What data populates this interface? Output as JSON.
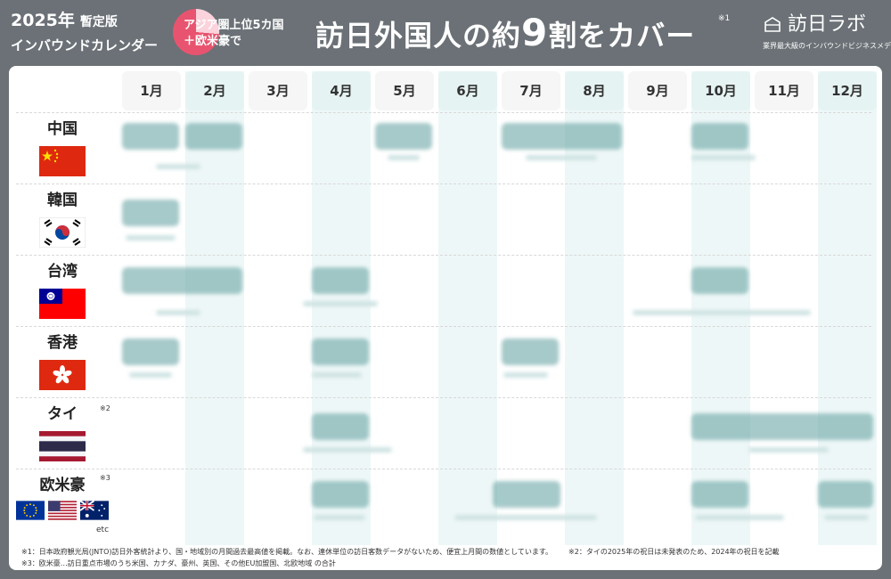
{
  "header": {
    "year_line": "2025年",
    "edition": "暫定版",
    "subtitle": "インバウンドカレンダー",
    "coverage_line1": "アジア圏上位5カ国",
    "coverage_line2": "＋欧米豪で",
    "title_pre": "訪日外国人の約",
    "title_num": "9",
    "title_post": "割をカバー",
    "title_note": "※1"
  },
  "logo": {
    "name": "訪日ラボ",
    "tagline": "業界最大級のインバウンドビジネスメディア"
  },
  "months": [
    "1月",
    "2月",
    "3月",
    "4月",
    "5月",
    "6月",
    "7月",
    "8月",
    "9月",
    "10月",
    "11月",
    "12月"
  ],
  "countries": [
    {
      "name": "中国",
      "note": "",
      "flags": [
        "cn-flag"
      ]
    },
    {
      "name": "韓国",
      "note": "",
      "flags": [
        "kr-flag"
      ]
    },
    {
      "name": "台湾",
      "note": "",
      "flags": [
        "tw-flag"
      ]
    },
    {
      "name": "香港",
      "note": "",
      "flags": [
        "hk-flag"
      ]
    },
    {
      "name": "タイ",
      "note": "※2",
      "flags": [
        "th-flag"
      ]
    },
    {
      "name": "欧米豪",
      "note": "※3",
      "flags": [
        "eu-flag",
        "us-flag",
        "au-flag"
      ],
      "extra": "etc"
    }
  ],
  "footnotes": {
    "n1": "※1：日本政府観光局(JNTO)訪日外客統計より、国・地域別の月間過去最高値を掲載。なお、連休単位の訪日客数データがないため、便宜上月間の数値としています。",
    "n2": "※2：タイの2025年の祝日は未発表のため、2024年の祝日を記載",
    "n3": "※3：欧米豪…訪日重点市場のうち米国、カナダ、豪州、英国、その他EU加盟国、北欧地域 の合計"
  },
  "colors": {
    "frame": "#6b7176",
    "accent_pink": "#e8546f",
    "event_teal": "#5f9e9e",
    "band": "#eef7f7"
  }
}
